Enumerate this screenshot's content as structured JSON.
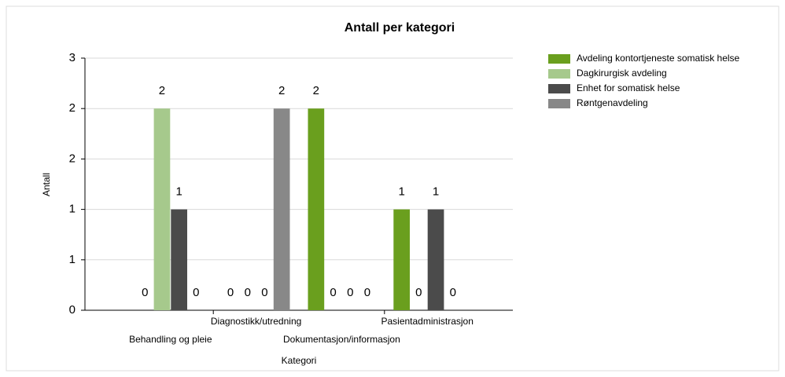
{
  "chart_data": {
    "type": "bar",
    "title": "Antall per kategori",
    "x_label": "Kategori",
    "y_label": "Antall",
    "categories": [
      "Behandling og pleie",
      "Diagnostikk/utredning",
      "Dokumentasjon/informasjon",
      "Pasientadministrasjon"
    ],
    "series": [
      {
        "name": "Avdeling kontortjeneste somatisk helse",
        "color": "#6a9f1e",
        "values": [
          0,
          0,
          2,
          1
        ]
      },
      {
        "name": "Dagkirurgisk avdeling",
        "color": "#a6c98c",
        "values": [
          2,
          0,
          0,
          0
        ]
      },
      {
        "name": "Enhet for somatisk helse",
        "color": "#4b4b4b",
        "values": [
          1,
          0,
          0,
          1
        ]
      },
      {
        "name": "Røntgenavdeling",
        "color": "#888888",
        "values": [
          0,
          2,
          0,
          0
        ]
      }
    ],
    "ylim": [
      0,
      2.5
    ],
    "yticks": [
      0,
      {
        "value": 0.5,
        "label": "1"
      },
      1,
      {
        "value": 1.5,
        "label": "2"
      },
      2,
      {
        "value": 2.5,
        "label": "3"
      }
    ],
    "grid": true,
    "legend": "right"
  }
}
